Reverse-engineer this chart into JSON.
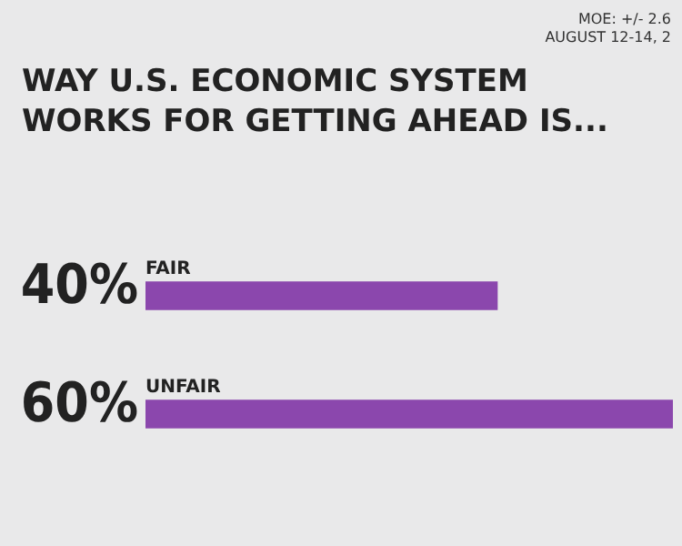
{
  "chart_data": {
    "type": "bar",
    "orientation": "horizontal",
    "title": "WAY U.S. ECONOMIC SYSTEM WORKS FOR GETTING AHEAD IS...",
    "annotations": [
      "MOE: +/- 2.6",
      "AUGUST 12-14, 2"
    ],
    "categories": [
      "FAIR",
      "UNFAIR"
    ],
    "values": [
      40,
      60
    ],
    "value_labels": [
      "40%",
      "60%"
    ],
    "color": "#8b47ad"
  }
}
